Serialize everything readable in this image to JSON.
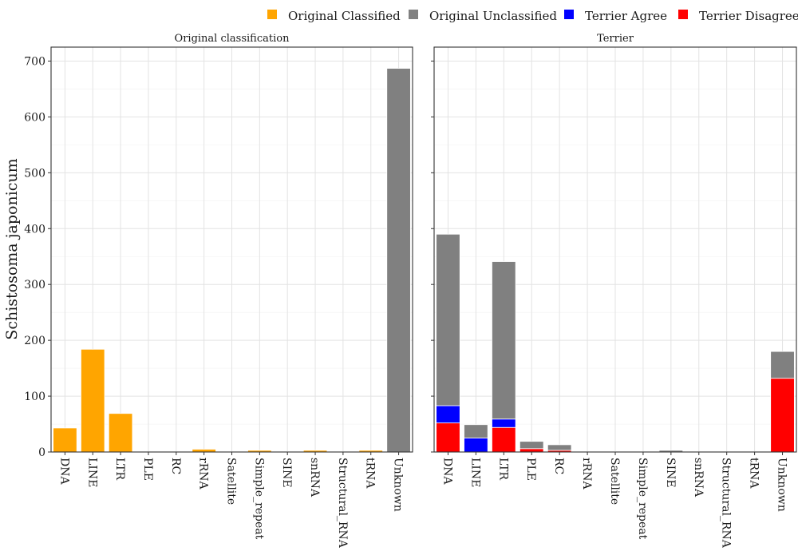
{
  "chart_data": {
    "type": "bar",
    "stacked": true,
    "ylabel": "Schistosoma japonicum",
    "ylim": [
      0,
      725
    ],
    "yticks": [
      0,
      100,
      200,
      300,
      400,
      500,
      600,
      700
    ],
    "grid": true,
    "legend": {
      "placement": "top-right",
      "entries": [
        {
          "name": "Original Classified",
          "color": "#FFA500"
        },
        {
          "name": "Original Unclassified",
          "color": "#808080"
        },
        {
          "name": "Terrier Agree",
          "color": "#0000FF"
        },
        {
          "name": "Terrier Disagree",
          "color": "#FF0000"
        }
      ]
    },
    "categories": [
      "DNA",
      "LINE",
      "LTR",
      "PLE",
      "RC",
      "rRNA",
      "Satellite",
      "Simple_repeat",
      "SINE",
      "snRNA",
      "Structural_RNA",
      "tRNA",
      "Unknown"
    ],
    "panels": [
      {
        "title": "Original classification",
        "series": [
          {
            "name": "Original Classified",
            "color": "#FFA500",
            "values": [
              43,
              184,
              69,
              0,
              0,
              5,
              0,
              3,
              1,
              3,
              0,
              3,
              0
            ]
          },
          {
            "name": "Original Unclassified",
            "color": "#808080",
            "values": [
              0,
              0,
              0,
              0,
              0,
              0,
              0,
              0,
              0,
              0,
              0,
              0,
              687
            ]
          }
        ]
      },
      {
        "title": "Terrier",
        "series": [
          {
            "name": "Terrier Disagree",
            "color": "#FF0000",
            "values": [
              52,
              0,
              44,
              6,
              3,
              0,
              0,
              0,
              0,
              0,
              0,
              0,
              132
            ]
          },
          {
            "name": "Terrier Agree",
            "color": "#0000FF",
            "values": [
              31,
              25,
              15,
              0,
              0,
              0,
              0,
              0,
              0,
              0,
              0,
              0,
              0
            ]
          },
          {
            "name": "Original Unclassified",
            "color": "#808080",
            "values": [
              307,
              24,
              282,
              13,
              10,
              0,
              1,
              0,
              3,
              0,
              0,
              0,
              48
            ]
          }
        ]
      }
    ]
  }
}
